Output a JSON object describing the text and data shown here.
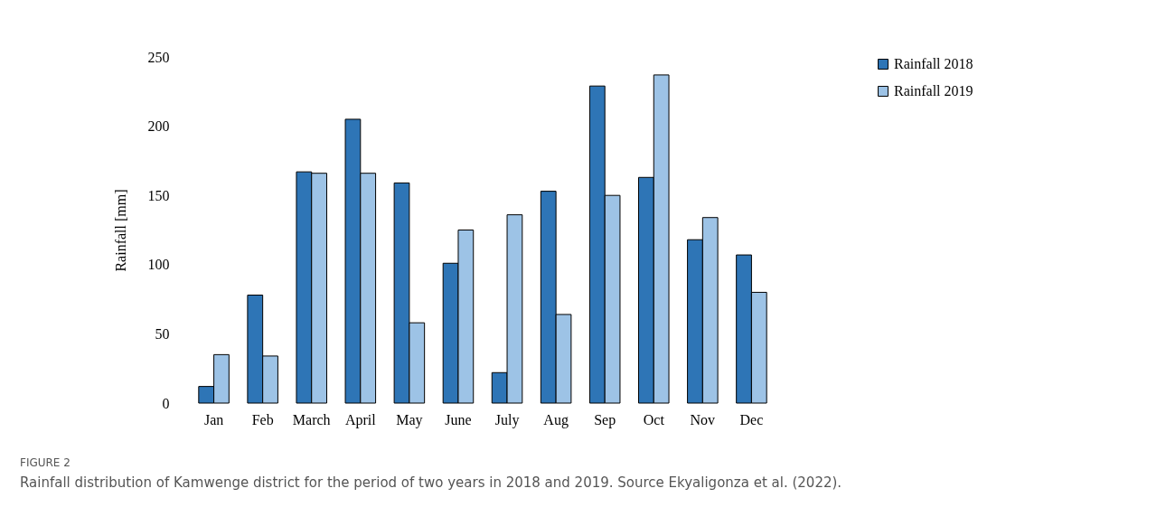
{
  "chart_data": {
    "type": "bar",
    "ylabel": "Rainfall [mm]",
    "categories": [
      "Jan",
      "Feb",
      "March",
      "April",
      "May",
      "June",
      "July",
      "Aug",
      "Sep",
      "Oct",
      "Nov",
      "Dec"
    ],
    "series": [
      {
        "name": "Rainfall 2018",
        "color": "#2e75b6",
        "values": [
          12,
          78,
          167,
          205,
          159,
          101,
          22,
          153,
          229,
          163,
          118,
          107
        ]
      },
      {
        "name": "Rainfall 2019",
        "color": "#9dc3e6",
        "values": [
          35,
          34,
          166,
          166,
          58,
          125,
          136,
          64,
          150,
          237,
          134,
          80
        ]
      }
    ],
    "ylim": [
      0,
      250
    ],
    "yticks": [
      0,
      50,
      100,
      150,
      200,
      250
    ],
    "grid": false,
    "legend": "right",
    "annotations": [
      "FIGURE 2",
      "Rainfall distribution of Kamwenge district for the period of two years in 2018 and 2019. Source Ekyaligonza et al. (2022)."
    ]
  }
}
